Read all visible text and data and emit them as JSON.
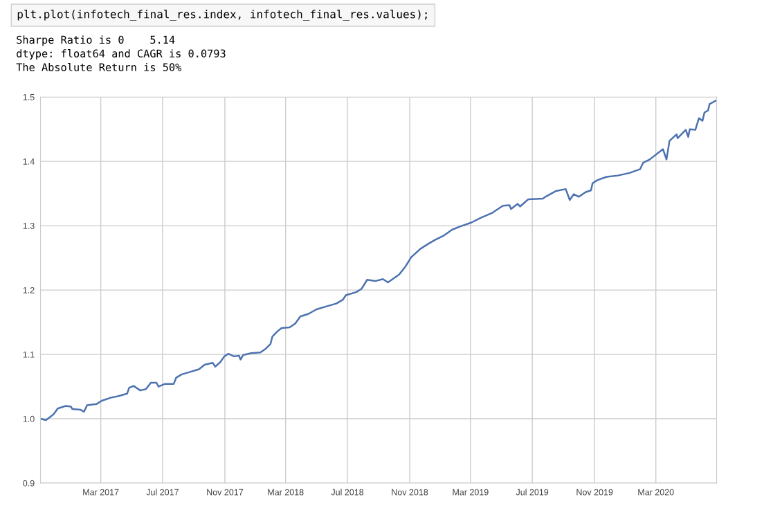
{
  "chart_data": {
    "type": "line",
    "annotations": [
      "plt.plot(infotech_final_res.index, infotech_final_res.values);",
      "Sharpe Ratio is 0    5.14",
      "dtype: float64 and CAGR is 0.0793",
      "The Absolute Return is 50%"
    ],
    "series": [
      {
        "color": "#4c72b0",
        "x": [
          "2016-11-02",
          "2016-11-13",
          "2016-11-28",
          "2016-12-06",
          "2016-12-22",
          "2017-01-01",
          "2017-01-04",
          "2017-01-20",
          "2017-01-27",
          "2017-02-02",
          "2017-02-21",
          "2017-03-03",
          "2017-03-22",
          "2017-04-04",
          "2017-04-22",
          "2017-04-26",
          "2017-05-05",
          "2017-05-18",
          "2017-05-29",
          "2017-06-08",
          "2017-06-19",
          "2017-06-23",
          "2017-07-05",
          "2017-07-23",
          "2017-07-28",
          "2017-08-08",
          "2017-08-21",
          "2017-09-11",
          "2017-09-22",
          "2017-10-08",
          "2017-10-13",
          "2017-10-23",
          "2017-10-31",
          "2017-11-08",
          "2017-11-19",
          "2017-11-29",
          "2017-12-02",
          "2017-12-07",
          "2017-12-23",
          "2018-01-10",
          "2018-01-21",
          "2018-01-30",
          "2018-02-03",
          "2018-02-13",
          "2018-02-21",
          "2018-03-09",
          "2018-03-20",
          "2018-03-30",
          "2018-04-15",
          "2018-05-01",
          "2018-05-22",
          "2018-06-09",
          "2018-06-22",
          "2018-06-28",
          "2018-07-19",
          "2018-07-29",
          "2018-08-09",
          "2018-08-25",
          "2018-09-09",
          "2018-09-19",
          "2018-10-11",
          "2018-10-24",
          "2018-11-04",
          "2018-11-22",
          "2018-12-08",
          "2018-12-21",
          "2019-01-08",
          "2019-01-24",
          "2019-02-09",
          "2019-03-03",
          "2019-03-23",
          "2019-04-13",
          "2019-05-04",
          "2019-05-17",
          "2019-05-20",
          "2019-06-02",
          "2019-06-07",
          "2019-06-23",
          "2019-07-22",
          "2019-07-27",
          "2019-08-17",
          "2019-09-05",
          "2019-09-13",
          "2019-09-21",
          "2019-10-01",
          "2019-10-14",
          "2019-10-25",
          "2019-10-28",
          "2019-11-07",
          "2019-11-25",
          "2019-12-17",
          "2020-01-09",
          "2020-01-30",
          "2020-02-05",
          "2020-02-18",
          "2020-03-15",
          "2020-03-22",
          "2020-03-28",
          "2020-04-11",
          "2020-04-13",
          "2020-04-29",
          "2020-05-04",
          "2020-05-07",
          "2020-05-18",
          "2020-05-25",
          "2020-06-01",
          "2020-06-05",
          "2020-06-12",
          "2020-06-15",
          "2020-06-29"
        ],
        "values": [
          1.0,
          0.998,
          1.007,
          1.016,
          1.02,
          1.019,
          1.015,
          1.014,
          1.011,
          1.021,
          1.023,
          1.028,
          1.033,
          1.035,
          1.039,
          1.048,
          1.051,
          1.044,
          1.046,
          1.056,
          1.056,
          1.05,
          1.054,
          1.054,
          1.064,
          1.069,
          1.072,
          1.077,
          1.084,
          1.087,
          1.081,
          1.088,
          1.097,
          1.101,
          1.097,
          1.098,
          1.092,
          1.099,
          1.102,
          1.103,
          1.109,
          1.116,
          1.128,
          1.136,
          1.141,
          1.142,
          1.148,
          1.159,
          1.163,
          1.17,
          1.175,
          1.179,
          1.185,
          1.192,
          1.197,
          1.202,
          1.216,
          1.214,
          1.217,
          1.212,
          1.224,
          1.237,
          1.251,
          1.264,
          1.272,
          1.278,
          1.285,
          1.294,
          1.299,
          1.305,
          1.313,
          1.32,
          1.331,
          1.332,
          1.326,
          1.334,
          1.33,
          1.341,
          1.342,
          1.345,
          1.354,
          1.357,
          1.34,
          1.349,
          1.345,
          1.352,
          1.355,
          1.366,
          1.371,
          1.376,
          1.378,
          1.382,
          1.388,
          1.398,
          1.403,
          1.419,
          1.403,
          1.432,
          1.442,
          1.436,
          1.449,
          1.438,
          1.45,
          1.449,
          1.467,
          1.463,
          1.476,
          1.479,
          1.489,
          1.495
        ]
      }
    ],
    "xlim": [
      "2016-11-02",
      "2020-06-29"
    ],
    "xticks": [
      {
        "value": "2017-03-01",
        "label": "Mar 2017"
      },
      {
        "value": "2017-07-01",
        "label": "Jul 2017"
      },
      {
        "value": "2017-11-01",
        "label": "Nov 2017"
      },
      {
        "value": "2018-03-01",
        "label": "Mar 2018"
      },
      {
        "value": "2018-07-01",
        "label": "Jul 2018"
      },
      {
        "value": "2018-11-01",
        "label": "Nov 2018"
      },
      {
        "value": "2019-03-01",
        "label": "Mar 2019"
      },
      {
        "value": "2019-07-01",
        "label": "Jul 2019"
      },
      {
        "value": "2019-11-01",
        "label": "Nov 2019"
      },
      {
        "value": "2020-03-01",
        "label": "Mar 2020"
      }
    ],
    "ylim": [
      0.9,
      1.5
    ],
    "yticks": [
      {
        "value": 0.9,
        "label": "0.9"
      },
      {
        "value": 1.0,
        "label": "1.0"
      },
      {
        "value": 1.1,
        "label": "1.1"
      },
      {
        "value": 1.2,
        "label": "1.2"
      },
      {
        "value": 1.3,
        "label": "1.3"
      },
      {
        "value": 1.4,
        "label": "1.4"
      },
      {
        "value": 1.5,
        "label": "1.5"
      }
    ],
    "grid": true,
    "marker": "none",
    "line_style": "solid"
  }
}
